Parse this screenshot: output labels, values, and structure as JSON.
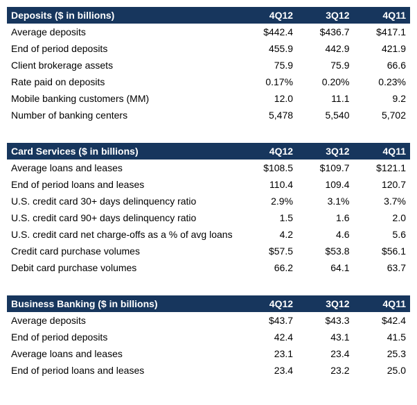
{
  "header_bg": "#17365d",
  "header_color": "#ffffff",
  "text_color": "#000000",
  "tables": [
    {
      "title": "Deposits ($ in billions)",
      "columns": [
        "4Q12",
        "3Q12",
        "4Q11"
      ],
      "rows": [
        {
          "label": "Average deposits",
          "vals": [
            "$442.4",
            "$436.7",
            "$417.1"
          ]
        },
        {
          "label": "End of period deposits",
          "vals": [
            "455.9",
            "442.9",
            "421.9"
          ]
        },
        {
          "label": "Client brokerage assets",
          "vals": [
            "75.9",
            "75.9",
            "66.6"
          ]
        },
        {
          "label": "Rate paid on deposits",
          "vals": [
            "0.17%",
            "0.20%",
            "0.23%"
          ]
        },
        {
          "label": "Mobile banking customers (MM)",
          "vals": [
            "12.0",
            "11.1",
            "9.2"
          ]
        },
        {
          "label": "Number of banking centers",
          "vals": [
            "5,478",
            "5,540",
            "5,702"
          ]
        }
      ]
    },
    {
      "title": "Card Services ($ in billions)",
      "columns": [
        "4Q12",
        "3Q12",
        "4Q11"
      ],
      "rows": [
        {
          "label": "Average loans and leases",
          "vals": [
            "$108.5",
            "$109.7",
            "$121.1"
          ]
        },
        {
          "label": "End of period loans and leases",
          "vals": [
            "110.4",
            "109.4",
            "120.7"
          ]
        },
        {
          "label": "U.S. credit card 30+ days delinquency ratio",
          "vals": [
            "2.9%",
            "3.1%",
            "3.7%"
          ]
        },
        {
          "label": "U.S. credit card 90+ days delinquency ratio",
          "vals": [
            "1.5",
            "1.6",
            "2.0"
          ]
        },
        {
          "label": "U.S. credit card net charge-offs as a % of avg loans",
          "vals": [
            "4.2",
            "4.6",
            "5.6"
          ]
        },
        {
          "label": "Credit card purchase volumes",
          "vals": [
            "$57.5",
            "$53.8",
            "$56.1"
          ]
        },
        {
          "label": "Debit card purchase volumes",
          "vals": [
            "66.2",
            "64.1",
            "63.7"
          ]
        }
      ]
    },
    {
      "title": "Business Banking ($ in billions)",
      "columns": [
        "4Q12",
        "3Q12",
        "4Q11"
      ],
      "rows": [
        {
          "label": "Average deposits",
          "vals": [
            "$43.7",
            "$43.3",
            "$42.4"
          ]
        },
        {
          "label": "End of period deposits",
          "vals": [
            "42.4",
            "43.1",
            "41.5"
          ]
        },
        {
          "label": "Average loans and leases",
          "vals": [
            "23.1",
            "23.4",
            "25.3"
          ]
        },
        {
          "label": "End of period loans and leases",
          "vals": [
            "23.4",
            "23.2",
            "25.0"
          ]
        }
      ]
    }
  ]
}
